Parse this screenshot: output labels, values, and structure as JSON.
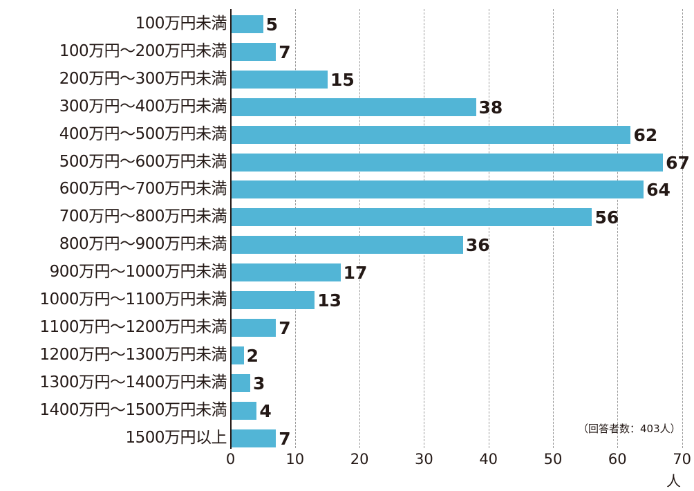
{
  "chart_data": {
    "type": "bar",
    "orientation": "horizontal",
    "title": "",
    "xlabel": "人",
    "ylabel": "",
    "xlim": [
      0,
      70
    ],
    "xticks": [
      0,
      10,
      20,
      30,
      40,
      50,
      60,
      70
    ],
    "grid": "vertical dashed",
    "bar_color": "#52b5d6",
    "annotation": "（回答者数：403人）",
    "categories": [
      "100万円未満",
      "100万円〜200万円未満",
      "200万円〜300万円未満",
      "300万円〜400万円未満",
      "400万円〜500万円未満",
      "500万円〜600万円未満",
      "600万円〜700万円未満",
      "700万円〜800万円未満",
      "800万円〜900万円未満",
      "900万円〜1000万円未満",
      "1000万円〜1100万円未満",
      "1100万円〜1200万円未満",
      "1200万円〜1300万円未満",
      "1300万円〜1400万円未満",
      "1400万円〜1500万円未満",
      "1500万円以上"
    ],
    "values": [
      5,
      7,
      15,
      38,
      62,
      67,
      64,
      56,
      36,
      17,
      13,
      7,
      2,
      3,
      4,
      7
    ]
  }
}
